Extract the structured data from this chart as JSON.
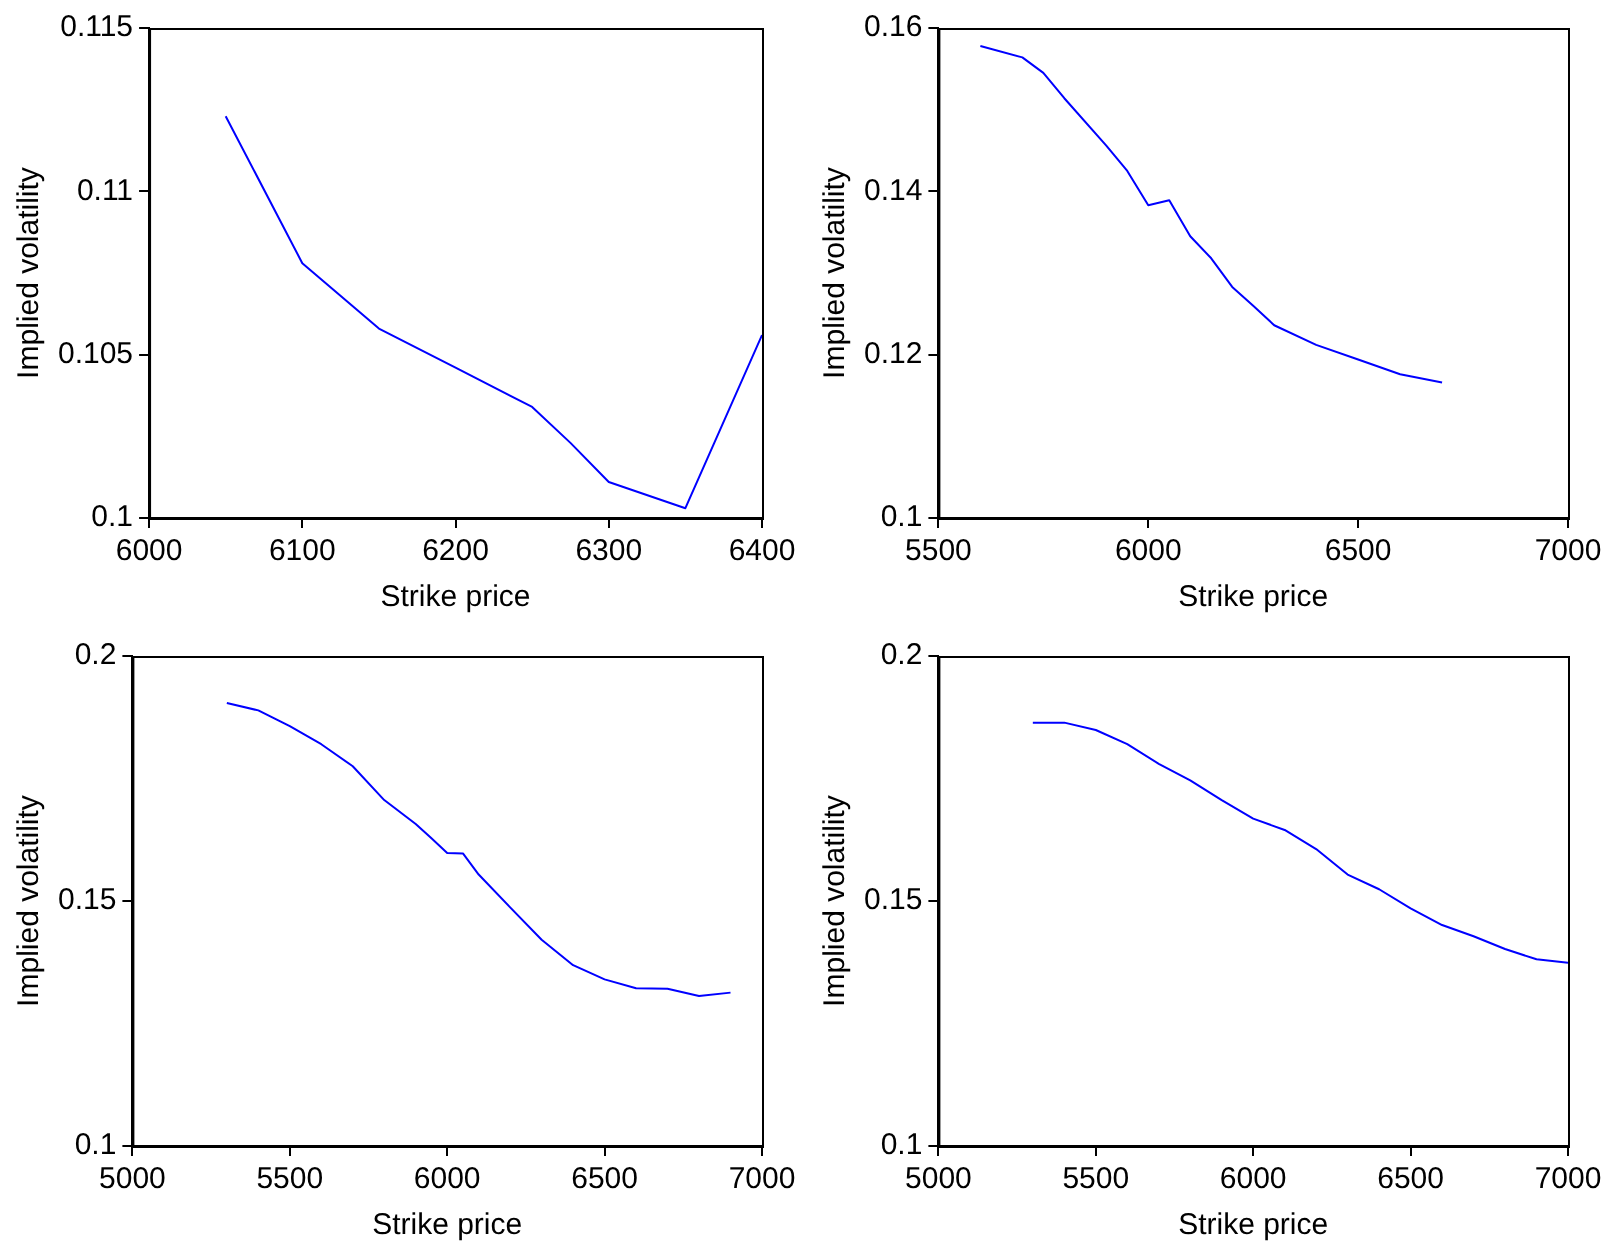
{
  "chart_data": [
    {
      "type": "line",
      "xlabel": "Strike price",
      "ylabel": "Implied volatility",
      "x": [
        6050,
        6100,
        6150,
        6200,
        6250,
        6275,
        6300,
        6350,
        6400
      ],
      "series": [
        {
          "color": "#0000ff",
          "values": [
            0.1123,
            0.1078,
            0.1058,
            0.1046,
            0.1034,
            0.1023,
            0.1011,
            0.1003,
            0.1056
          ]
        }
      ],
      "xlim": [
        6000,
        6400
      ],
      "xticks": [
        6000,
        6100,
        6200,
        6300,
        6400
      ],
      "ylim": [
        0.1,
        0.115
      ],
      "yticks": [
        0.1,
        0.105,
        0.11,
        0.115
      ],
      "grid": false,
      "legend": false,
      "marker": "none",
      "line_style": "solid"
    },
    {
      "type": "line",
      "xlabel": "Strike price",
      "ylabel": "Implied volatility",
      "x": [
        5600,
        5700,
        5750,
        5800,
        5900,
        5950,
        6000,
        6050,
        6100,
        6150,
        6200,
        6250,
        6300,
        6400,
        6500,
        6600,
        6700
      ],
      "series": [
        {
          "color": "#0000ff",
          "values": [
            0.1578,
            0.1564,
            0.1545,
            0.1514,
            0.1456,
            0.1425,
            0.1383,
            0.1389,
            0.1345,
            0.1318,
            0.1283,
            0.126,
            0.1236,
            0.1212,
            0.1194,
            0.1176,
            0.1166
          ]
        }
      ],
      "xlim": [
        5500,
        7000
      ],
      "xticks": [
        5500,
        6000,
        6500,
        7000
      ],
      "ylim": [
        0.1,
        0.16
      ],
      "yticks": [
        0.1,
        0.12,
        0.14,
        0.16
      ],
      "grid": false,
      "legend": false,
      "marker": "none",
      "line_style": "solid"
    },
    {
      "type": "line",
      "xlabel": "Strike price",
      "ylabel": "Implied volatility",
      "x": [
        5300,
        5400,
        5500,
        5600,
        5700,
        5800,
        5900,
        5950,
        6000,
        6050,
        6100,
        6200,
        6300,
        6400,
        6500,
        6600,
        6700,
        6800,
        6900
      ],
      "series": [
        {
          "color": "#0000ff",
          "values": [
            0.1904,
            0.1889,
            0.1857,
            0.182,
            0.1775,
            0.1706,
            0.1657,
            0.1628,
            0.1598,
            0.1597,
            0.1554,
            0.1487,
            0.1421,
            0.1369,
            0.134,
            0.1322,
            0.1321,
            0.1306,
            0.1313
          ]
        }
      ],
      "xlim": [
        5000,
        7000
      ],
      "xticks": [
        5000,
        5500,
        6000,
        6500,
        7000
      ],
      "ylim": [
        0.1,
        0.2
      ],
      "yticks": [
        0.1,
        0.15,
        0.2
      ],
      "grid": false,
      "legend": false,
      "marker": "none",
      "line_style": "solid"
    },
    {
      "type": "line",
      "xlabel": "Strike price",
      "ylabel": "Implied volatility",
      "x": [
        5300,
        5400,
        5500,
        5600,
        5700,
        5800,
        5900,
        6000,
        6100,
        6200,
        6300,
        6400,
        6500,
        6600,
        6700,
        6800,
        6900,
        7000
      ],
      "series": [
        {
          "color": "#0000ff",
          "values": [
            0.1864,
            0.1864,
            0.1849,
            0.182,
            0.178,
            0.1746,
            0.1706,
            0.1668,
            0.1645,
            0.1606,
            0.1554,
            0.1524,
            0.1485,
            0.1451,
            0.1428,
            0.1402,
            0.1381,
            0.1374
          ]
        }
      ],
      "xlim": [
        5000,
        7000
      ],
      "xticks": [
        5000,
        5500,
        6000,
        6500,
        7000
      ],
      "ylim": [
        0.1,
        0.2
      ],
      "yticks": [
        0.1,
        0.15,
        0.2
      ],
      "grid": false,
      "legend": false,
      "marker": "none",
      "line_style": "solid"
    }
  ]
}
